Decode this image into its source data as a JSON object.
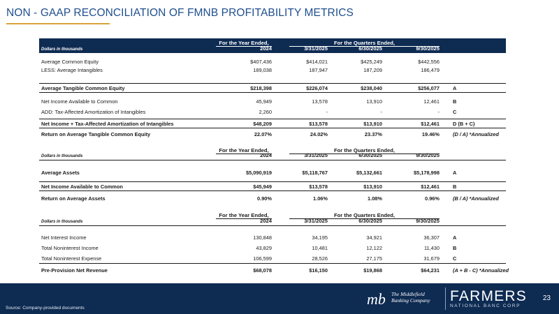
{
  "title": "NON - GAAP RECONCILIATION OF FMNB PROFITABILITY METRICS",
  "tables": [
    {
      "header": {
        "group1": "For the Year Ended,",
        "group2": "For the Quarters Ended,",
        "units": "Dollars in thousands",
        "cols": [
          "2024",
          "3/31/2025",
          "6/30/2025",
          "9/30/2025"
        ]
      },
      "rows": [
        {
          "label": "Average Common Equity",
          "values": [
            "$407,436",
            "$414,021",
            "$425,249",
            "$442,556"
          ],
          "note": ""
        },
        {
          "label": "LESS: Average Intangibles",
          "values": [
            "189,038",
            "187,947",
            "187,209",
            "186,479"
          ],
          "note": ""
        },
        {
          "label": "Average Tangible Common Equity",
          "values": [
            "$218,398",
            "$226,074",
            "$238,040",
            "$256,077"
          ],
          "note": "A"
        },
        {
          "label": "Net Income Available to Common",
          "values": [
            "45,949",
            "13,578",
            "13,910",
            "12,461"
          ],
          "note": "B"
        },
        {
          "label": "ADD: Tax-Affected Amortization of Intangibles",
          "values": [
            "2,260",
            "-",
            "-",
            "-"
          ],
          "note": "C"
        },
        {
          "label": "Net Income + Tax-Affected Amortization of Intangibles",
          "values": [
            "$48,209",
            "$13,578",
            "$13,910",
            "$12,461"
          ],
          "note": "D (B + C)"
        },
        {
          "label": "Return on Average Tangible Common Equity",
          "values": [
            "22.07%",
            "24.02%",
            "23.37%",
            "19.46%"
          ],
          "note": "(D / A) *Annualized"
        }
      ]
    },
    {
      "header": {
        "group1": "For the Year Ended,",
        "group2": "For the Quarters Ended,",
        "units": "Dollars in thousands",
        "cols": [
          "2024",
          "3/31/2025",
          "6/30/2025",
          "9/30/2025"
        ]
      },
      "rows": [
        {
          "label": "Average Assets",
          "values": [
            "$5,090,919",
            "$5,118,767",
            "$5,132,661",
            "$5,178,998"
          ],
          "note": "A"
        },
        {
          "label": "Net Income Available to Common",
          "values": [
            "$45,949",
            "$13,578",
            "$13,910",
            "$12,461"
          ],
          "note": "B"
        },
        {
          "label": "Return on Average Assets",
          "values": [
            "0.90%",
            "1.06%",
            "1.08%",
            "0.96%"
          ],
          "note": "(B / A) *Annualized"
        }
      ]
    },
    {
      "header": {
        "group1": "For the Year Ended,",
        "group2": "For the Quarters Ended,",
        "units": "Dollars in thousands",
        "cols": [
          "2024",
          "3/31/2025",
          "6/30/2025",
          "9/30/2025"
        ]
      },
      "rows": [
        {
          "label": "Net Interest Income",
          "values": [
            "130,848",
            "34,195",
            "34,921",
            "36,307"
          ],
          "note": "A"
        },
        {
          "label": "Total Noninterest Income",
          "values": [
            "43,829",
            "10,481",
            "12,122",
            "11,430"
          ],
          "note": "B"
        },
        {
          "label": "Total Noninterest Expense",
          "values": [
            "106,599",
            "28,526",
            "27,175",
            "31,679"
          ],
          "note": "C"
        },
        {
          "label": "Pre-Provision Net Revenue",
          "values": [
            "$68,078",
            "$16,150",
            "$19,868",
            "$64,231"
          ],
          "note": "(A + B - C) *Annualized"
        }
      ]
    }
  ],
  "footer": {
    "source": "Source: Company-provided documents",
    "mb_logo": "mb",
    "mb_name_line1": "The Middlefield",
    "mb_name_line2": "Banking Company",
    "farmers": "FARMERS",
    "farmers_sub": "NATIONAL BANC CORP",
    "page_number": "23"
  },
  "colors": {
    "navy": "#0e2b52",
    "title_blue": "#1f4f8f",
    "gold": "#d9a23a"
  },
  "icons": [
    "mb-logo-icon"
  ]
}
